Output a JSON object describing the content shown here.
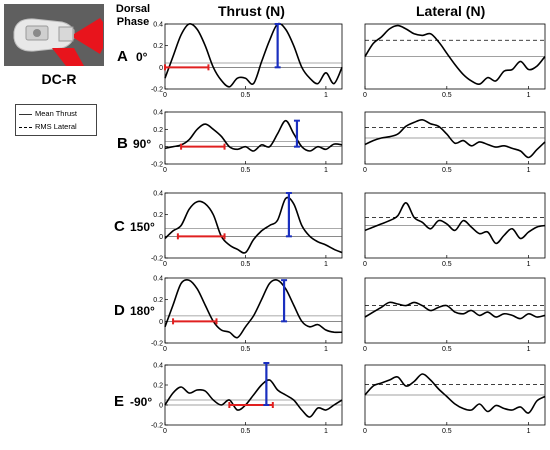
{
  "header": {
    "model_label": "DC-R",
    "dorsal_label": "Dorsal",
    "phase_label": "Phase",
    "thrust_title": "Thrust (N)",
    "lateral_title": "Lateral (N)"
  },
  "legend": {
    "mean_thrust": "Mean Thrust",
    "rms_lateral": "RMS Lateral"
  },
  "rows": [
    {
      "letter": "A",
      "phase": "0°"
    },
    {
      "letter": "B",
      "phase": "90°"
    },
    {
      "letter": "C",
      "phase": "150°"
    },
    {
      "letter": "D",
      "phase": "180°"
    },
    {
      "letter": "E",
      "phase": "-90°"
    }
  ],
  "colors": {
    "curve": "#000000",
    "red_marker": "#e02020",
    "blue_marker": "#1a2fbf",
    "model_background": "#5f5f5f",
    "fin_red": "#e8141c"
  },
  "chart_data": [
    {
      "id": "thrust-A",
      "type": "line",
      "xlim": [
        0,
        1.1
      ],
      "ylim": [
        -0.2,
        0.4
      ],
      "xticks": [
        "0",
        "0.5",
        "1"
      ],
      "yticks": [
        "-0.2",
        "0",
        "0.2",
        "0.4"
      ],
      "x": [
        0,
        0.05,
        0.1,
        0.15,
        0.2,
        0.25,
        0.3,
        0.35,
        0.4,
        0.45,
        0.5,
        0.55,
        0.6,
        0.65,
        0.7,
        0.75,
        0.8,
        0.85,
        0.9,
        0.95,
        1.0,
        1.05,
        1.1
      ],
      "y": [
        -0.1,
        0.1,
        0.3,
        0.4,
        0.35,
        0.2,
        0.0,
        -0.12,
        -0.18,
        -0.1,
        -0.1,
        -0.15,
        0.05,
        0.25,
        0.4,
        0.35,
        0.2,
        0.0,
        -0.1,
        -0.15,
        -0.05,
        -0.15,
        0.0
      ],
      "mean_thrust": 0.04,
      "red_interval": [
        0.0,
        0.27
      ],
      "red_y": 0.0,
      "blue_x": 0.7,
      "blue_range": [
        0.0,
        0.4
      ]
    },
    {
      "id": "lateral-A",
      "type": "line",
      "xlim": [
        0,
        1.1
      ],
      "ylim": [
        -2,
        2
      ],
      "xticks": [
        "0",
        "0.5",
        "1"
      ],
      "yticks": [],
      "x": [
        0,
        0.05,
        0.1,
        0.15,
        0.2,
        0.25,
        0.3,
        0.35,
        0.4,
        0.45,
        0.5,
        0.55,
        0.6,
        0.65,
        0.7,
        0.75,
        0.8,
        0.85,
        0.9,
        0.95,
        1.0,
        1.05,
        1.1
      ],
      "y": [
        0.0,
        0.8,
        1.2,
        1.7,
        1.9,
        1.7,
        1.4,
        1.3,
        1.4,
        0.9,
        0.2,
        -0.5,
        -1.1,
        -1.5,
        -1.7,
        -1.3,
        -1.5,
        -0.9,
        -0.8,
        -0.3,
        -0.8,
        -0.6,
        0.0
      ],
      "rms_lateral": 1.0
    },
    {
      "id": "thrust-B",
      "type": "line",
      "xlim": [
        0,
        1.1
      ],
      "ylim": [
        -0.2,
        0.4
      ],
      "xticks": [
        "0",
        "0.5",
        "1"
      ],
      "yticks": [
        "-0.2",
        "0",
        "0.2",
        "0.4"
      ],
      "x": [
        0,
        0.05,
        0.1,
        0.15,
        0.2,
        0.25,
        0.3,
        0.35,
        0.4,
        0.45,
        0.5,
        0.55,
        0.6,
        0.65,
        0.7,
        0.75,
        0.8,
        0.85,
        0.9,
        0.95,
        1.0,
        1.05,
        1.1
      ],
      "y": [
        -0.02,
        0.0,
        0.02,
        0.08,
        0.2,
        0.26,
        0.2,
        0.12,
        0.0,
        -0.03,
        0.0,
        -0.05,
        0.02,
        0.0,
        0.15,
        0.3,
        0.15,
        0.0,
        -0.05,
        0.0,
        -0.03,
        0.03,
        0.02
      ],
      "mean_thrust": 0.06,
      "red_interval": [
        0.1,
        0.37
      ],
      "red_y": 0.0,
      "blue_x": 0.82,
      "blue_range": [
        0.0,
        0.3
      ]
    },
    {
      "id": "lateral-B",
      "type": "line",
      "xlim": [
        0,
        1.1
      ],
      "ylim": [
        -2,
        2
      ],
      "xticks": [
        "0",
        "0.5",
        "1"
      ],
      "yticks": [],
      "x": [
        0,
        0.05,
        0.1,
        0.15,
        0.2,
        0.25,
        0.3,
        0.35,
        0.4,
        0.45,
        0.5,
        0.55,
        0.6,
        0.65,
        0.7,
        0.75,
        0.8,
        0.85,
        0.9,
        0.95,
        1.0,
        1.05,
        1.1
      ],
      "y": [
        -0.5,
        -0.2,
        0.0,
        0.1,
        0.3,
        0.9,
        1.2,
        1.4,
        1.1,
        0.9,
        0.3,
        -0.4,
        -0.2,
        -0.6,
        -0.3,
        -0.5,
        -0.7,
        -0.6,
        -0.8,
        -1.0,
        -1.5,
        -0.9,
        -0.3
      ],
      "rms_lateral": 0.8
    },
    {
      "id": "thrust-C",
      "type": "line",
      "xlim": [
        0,
        1.1
      ],
      "ylim": [
        -0.2,
        0.4
      ],
      "xticks": [
        "0",
        "0.5",
        "1"
      ],
      "yticks": [
        "-0.2",
        "0",
        "0.2",
        "0.4"
      ],
      "x": [
        0,
        0.05,
        0.1,
        0.15,
        0.2,
        0.25,
        0.3,
        0.35,
        0.4,
        0.45,
        0.5,
        0.55,
        0.6,
        0.65,
        0.7,
        0.75,
        0.8,
        0.85,
        0.9,
        0.95,
        1.0,
        1.05,
        1.1
      ],
      "y": [
        -0.02,
        0.05,
        0.1,
        0.25,
        0.32,
        0.3,
        0.2,
        0.0,
        -0.08,
        -0.12,
        -0.15,
        -0.03,
        0.05,
        0.1,
        0.15,
        0.35,
        0.3,
        0.1,
        0.0,
        -0.05,
        -0.08,
        -0.12,
        -0.15
      ],
      "mean_thrust": 0.07,
      "red_interval": [
        0.08,
        0.37
      ],
      "red_y": 0.0,
      "blue_x": 0.77,
      "blue_range": [
        0.0,
        0.4
      ]
    },
    {
      "id": "lateral-C",
      "type": "line",
      "xlim": [
        0,
        1.1
      ],
      "ylim": [
        -2,
        2
      ],
      "xticks": [
        "0",
        "0.5",
        "1"
      ],
      "yticks": [],
      "x": [
        0,
        0.05,
        0.1,
        0.15,
        0.2,
        0.25,
        0.3,
        0.35,
        0.4,
        0.45,
        0.5,
        0.55,
        0.6,
        0.65,
        0.7,
        0.75,
        0.8,
        0.85,
        0.9,
        0.95,
        1.0,
        1.05,
        1.1
      ],
      "y": [
        -0.3,
        -0.1,
        0.1,
        0.3,
        0.6,
        1.4,
        0.5,
        0.2,
        -0.2,
        0.3,
        0.1,
        -0.3,
        0.3,
        -0.1,
        -0.5,
        -0.4,
        -1.1,
        -0.6,
        -0.2,
        -0.8,
        -0.4,
        -0.1,
        0.0
      ],
      "rms_lateral": 0.5
    },
    {
      "id": "thrust-D",
      "type": "line",
      "xlim": [
        0,
        1.1
      ],
      "ylim": [
        -0.2,
        0.4
      ],
      "xticks": [
        "0",
        "0.5",
        "1"
      ],
      "yticks": [
        "-0.2",
        "0",
        "0.2",
        "0.4"
      ],
      "x": [
        0,
        0.05,
        0.1,
        0.15,
        0.2,
        0.25,
        0.3,
        0.35,
        0.4,
        0.45,
        0.5,
        0.55,
        0.6,
        0.65,
        0.7,
        0.75,
        0.8,
        0.85,
        0.9,
        0.95,
        1.0,
        1.05,
        1.1
      ],
      "y": [
        -0.05,
        0.15,
        0.35,
        0.38,
        0.3,
        0.15,
        0.0,
        -0.08,
        -0.1,
        -0.15,
        -0.05,
        0.05,
        0.2,
        0.35,
        0.38,
        0.3,
        0.15,
        0.0,
        -0.05,
        -0.03,
        -0.08,
        -0.1,
        -0.1
      ],
      "mean_thrust": 0.05,
      "red_interval": [
        0.05,
        0.32
      ],
      "red_y": 0.0,
      "blue_x": 0.74,
      "blue_range": [
        0.0,
        0.38
      ]
    },
    {
      "id": "lateral-D",
      "type": "line",
      "xlim": [
        0,
        1.1
      ],
      "ylim": [
        -2,
        2
      ],
      "xticks": [
        "0",
        "0.5",
        "1"
      ],
      "yticks": [],
      "x": [
        0,
        0.05,
        0.1,
        0.15,
        0.2,
        0.25,
        0.3,
        0.35,
        0.4,
        0.45,
        0.5,
        0.55,
        0.6,
        0.65,
        0.7,
        0.75,
        0.8,
        0.85,
        0.9,
        0.95,
        1.0,
        1.05,
        1.1
      ],
      "y": [
        -0.4,
        -0.1,
        0.2,
        0.5,
        0.4,
        0.3,
        0.5,
        0.3,
        0.0,
        0.2,
        0.3,
        -0.1,
        -0.2,
        0.0,
        -0.3,
        -0.1,
        -0.4,
        -0.2,
        -0.3,
        -0.5,
        -0.2,
        -0.4,
        -0.3
      ],
      "rms_lateral": 0.3
    },
    {
      "id": "thrust-E",
      "type": "line",
      "xlim": [
        0,
        1.1
      ],
      "ylim": [
        -0.2,
        0.4
      ],
      "xticks": [
        "0",
        "0.5",
        "1"
      ],
      "yticks": [
        "-0.2",
        "0",
        "0.2",
        "0.4"
      ],
      "x": [
        0,
        0.05,
        0.1,
        0.15,
        0.2,
        0.25,
        0.3,
        0.35,
        0.4,
        0.45,
        0.5,
        0.55,
        0.6,
        0.65,
        0.7,
        0.75,
        0.8,
        0.85,
        0.9,
        0.95,
        1.0,
        1.05,
        1.1
      ],
      "y": [
        0.0,
        0.12,
        0.18,
        0.12,
        0.15,
        0.14,
        0.05,
        0.0,
        0.05,
        -0.05,
        0.0,
        0.1,
        0.2,
        0.25,
        0.15,
        0.1,
        0.05,
        -0.05,
        -0.12,
        -0.03,
        -0.05,
        0.0,
        0.05
      ],
      "mean_thrust": 0.05,
      "red_interval": [
        0.4,
        0.67
      ],
      "red_y": 0.0,
      "blue_x": 0.63,
      "blue_range": [
        0.0,
        0.42
      ]
    },
    {
      "id": "lateral-E",
      "type": "line",
      "xlim": [
        0,
        1.1
      ],
      "ylim": [
        -2,
        2
      ],
      "xticks": [
        "0",
        "0.5",
        "1"
      ],
      "yticks": [],
      "x": [
        0,
        0.05,
        0.1,
        0.15,
        0.2,
        0.25,
        0.3,
        0.35,
        0.4,
        0.45,
        0.5,
        0.55,
        0.6,
        0.65,
        0.7,
        0.75,
        0.8,
        0.85,
        0.9,
        0.95,
        1.0,
        1.05,
        1.1
      ],
      "y": [
        0.0,
        0.6,
        0.8,
        1.0,
        1.2,
        0.6,
        0.9,
        1.4,
        1.0,
        0.4,
        -0.1,
        -0.6,
        -0.9,
        -1.0,
        -0.6,
        -1.1,
        -0.7,
        -0.9,
        -1.0,
        -0.8,
        -1.2,
        -0.4,
        -0.1
      ],
      "rms_lateral": 0.7
    }
  ]
}
